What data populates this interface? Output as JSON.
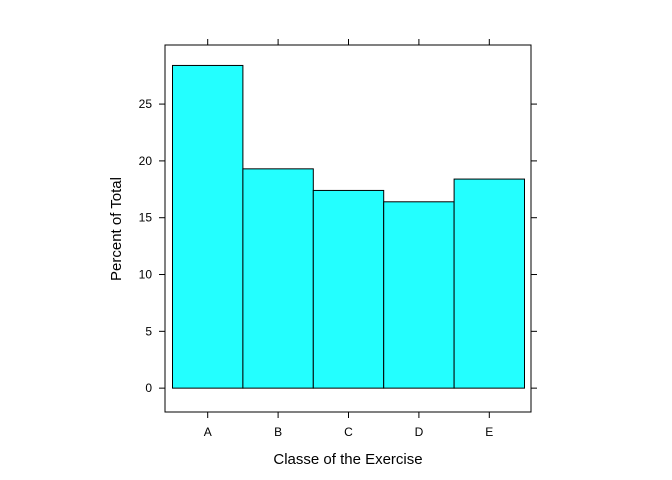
{
  "chart_data": {
    "type": "bar",
    "title": "",
    "xlabel": "Classe of the Exercise",
    "ylabel": "Percent of Total",
    "categories": [
      "A",
      "B",
      "C",
      "D",
      "E"
    ],
    "values": [
      28.4,
      19.3,
      17.4,
      16.4,
      18.4
    ],
    "ylim": [
      -2.1,
      30.2
    ],
    "yticks": [
      0,
      5,
      10,
      15,
      20,
      25
    ],
    "grid": false,
    "legend": "none",
    "colors": {
      "bar_fill": "#23ffff",
      "bar_stroke": "#000000"
    }
  }
}
